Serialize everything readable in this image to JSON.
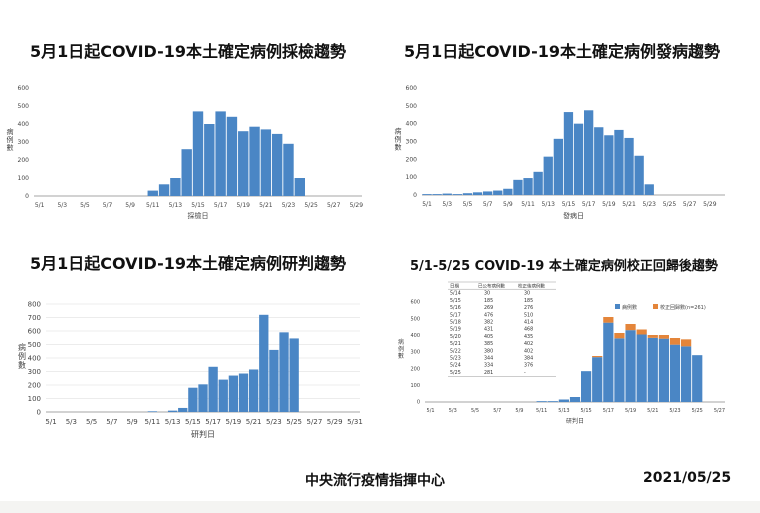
{
  "titles": {
    "t1": "5月1日起COVID-19本土確定病例採檢趨勢",
    "t2": "5月1日起COVID-19本土確定病例發病趨勢",
    "t3": "5月1日起COVID-19本土確定病例研判趨勢",
    "t4": "5/1-5/25 COVID-19 本土確定病例校正回歸後趨勢"
  },
  "footer": {
    "org": "中央流行疫情指揮中心",
    "date": "2021/05/25"
  },
  "colors": {
    "bar": "#4a86c5",
    "correction": "#e4853a",
    "grid": "#d9d9d9",
    "axis": "#888888"
  },
  "chart_data": [
    {
      "id": "sampling",
      "type": "bar",
      "xlabel": "採檢日",
      "ylabel": "病例數",
      "ylim": [
        0,
        600
      ],
      "yticks": [
        0,
        100,
        200,
        300,
        400,
        500,
        600
      ],
      "categories": [
        "5/1",
        "5/2",
        "5/3",
        "5/4",
        "5/5",
        "5/6",
        "5/7",
        "5/8",
        "5/9",
        "5/10",
        "5/11",
        "5/12",
        "5/13",
        "5/14",
        "5/15",
        "5/16",
        "5/17",
        "5/18",
        "5/19",
        "5/20",
        "5/21",
        "5/22",
        "5/23",
        "5/24",
        "5/25",
        "5/26",
        "5/27",
        "5/28",
        "5/29"
      ],
      "tick_labels": [
        "5/1",
        "5/3",
        "5/5",
        "5/7",
        "5/9",
        "5/11",
        "5/13",
        "5/15",
        "5/17",
        "5/19",
        "5/21",
        "5/23",
        "5/25",
        "5/27",
        "5/29"
      ],
      "values": [
        0,
        0,
        0,
        0,
        0,
        0,
        0,
        0,
        0,
        0,
        30,
        65,
        100,
        260,
        470,
        400,
        470,
        440,
        360,
        385,
        370,
        345,
        290,
        100,
        0,
        0,
        0,
        0,
        0
      ]
    },
    {
      "id": "onset",
      "type": "bar",
      "xlabel": "發病日",
      "ylabel": "病例數",
      "ylim": [
        0,
        600
      ],
      "yticks": [
        0,
        100,
        200,
        300,
        400,
        500,
        600
      ],
      "categories": [
        "5/1",
        "5/2",
        "5/3",
        "5/4",
        "5/5",
        "5/6",
        "5/7",
        "5/8",
        "5/9",
        "5/10",
        "5/11",
        "5/12",
        "5/13",
        "5/14",
        "5/15",
        "5/16",
        "5/17",
        "5/18",
        "5/19",
        "5/20",
        "5/21",
        "5/22",
        "5/23",
        "5/24",
        "5/25",
        "5/26",
        "5/27",
        "5/28",
        "5/29",
        "5/30"
      ],
      "tick_labels": [
        "5/1",
        "5/3",
        "5/5",
        "5/7",
        "5/9",
        "5/11",
        "5/13",
        "5/15",
        "5/17",
        "5/19",
        "5/21",
        "5/23",
        "5/25",
        "5/27",
        "5/29"
      ],
      "values": [
        5,
        5,
        8,
        5,
        10,
        15,
        20,
        25,
        35,
        85,
        95,
        130,
        215,
        315,
        465,
        400,
        475,
        380,
        335,
        365,
        320,
        220,
        60,
        0,
        0,
        0,
        0,
        0,
        0,
        0
      ]
    },
    {
      "id": "diagnosis",
      "type": "bar",
      "xlabel": "研判日",
      "ylabel": "病例數",
      "ylim": [
        0,
        800
      ],
      "yticks": [
        0,
        100,
        200,
        300,
        400,
        500,
        600,
        700,
        800
      ],
      "categories": [
        "5/1",
        "5/2",
        "5/3",
        "5/4",
        "5/5",
        "5/6",
        "5/7",
        "5/8",
        "5/9",
        "5/10",
        "5/11",
        "5/12",
        "5/13",
        "5/14",
        "5/15",
        "5/16",
        "5/17",
        "5/18",
        "5/19",
        "5/20",
        "5/21",
        "5/22",
        "5/23",
        "5/24",
        "5/25",
        "5/26",
        "5/27",
        "5/28",
        "5/29",
        "5/30",
        "5/31"
      ],
      "tick_labels": [
        "5/1",
        "5/3",
        "5/5",
        "5/7",
        "5/9",
        "5/11",
        "5/13",
        "5/15",
        "5/17",
        "5/19",
        "5/21",
        "5/23",
        "5/25",
        "5/27",
        "5/29",
        "5/31"
      ],
      "values": [
        0,
        0,
        0,
        0,
        0,
        0,
        0,
        0,
        0,
        0,
        5,
        0,
        10,
        30,
        180,
        205,
        335,
        240,
        270,
        285,
        315,
        720,
        460,
        590,
        545,
        0,
        0,
        0,
        0,
        0,
        0
      ]
    },
    {
      "id": "backfill",
      "type": "bar",
      "stacked": true,
      "xlabel": "研判日",
      "ylabel": "病例數",
      "ylim": [
        0,
        600
      ],
      "yticks": [
        0,
        100,
        200,
        300,
        400,
        500,
        600
      ],
      "categories": [
        "5/1",
        "5/2",
        "5/3",
        "5/4",
        "5/5",
        "5/6",
        "5/7",
        "5/8",
        "5/9",
        "5/10",
        "5/11",
        "5/12",
        "5/13",
        "5/14",
        "5/15",
        "5/16",
        "5/17",
        "5/18",
        "5/19",
        "5/20",
        "5/21",
        "5/22",
        "5/23",
        "5/24",
        "5/25",
        "5/26",
        "5/27"
      ],
      "tick_labels": [
        "5/1",
        "5/3",
        "5/5",
        "5/7",
        "5/9",
        "5/11",
        "5/13",
        "5/15",
        "5/17",
        "5/19",
        "5/21",
        "5/23",
        "5/25",
        "5/27"
      ],
      "series": [
        {
          "name": "病例數",
          "values": [
            0,
            0,
            0,
            0,
            0,
            0,
            0,
            0,
            0,
            0,
            5,
            5,
            15,
            30,
            185,
            269,
            476,
            382,
            431,
            405,
            385,
            380,
            344,
            334,
            281,
            0,
            0
          ]
        },
        {
          "name": "校正回歸數(n=261)",
          "values": [
            0,
            0,
            0,
            0,
            0,
            0,
            0,
            0,
            0,
            0,
            0,
            0,
            0,
            0,
            0,
            7,
            34,
            32,
            37,
            30,
            17,
            22,
            40,
            42,
            0,
            0,
            0
          ]
        }
      ],
      "legend_position": "top-right",
      "table": {
        "headers": [
          "日期",
          "已公布病例數",
          "校正後病例數"
        ],
        "rows": [
          [
            "5/14",
            "30",
            "30"
          ],
          [
            "5/15",
            "185",
            "185"
          ],
          [
            "5/16",
            "269",
            "276"
          ],
          [
            "5/17",
            "476",
            "510"
          ],
          [
            "5/18",
            "382",
            "414"
          ],
          [
            "5/19",
            "431",
            "468"
          ],
          [
            "5/20",
            "405",
            "435"
          ],
          [
            "5/21",
            "385",
            "402"
          ],
          [
            "5/22",
            "380",
            "402"
          ],
          [
            "5/23",
            "344",
            "384"
          ],
          [
            "5/24",
            "334",
            "376"
          ],
          [
            "5/25",
            "281",
            "-"
          ]
        ]
      }
    }
  ]
}
